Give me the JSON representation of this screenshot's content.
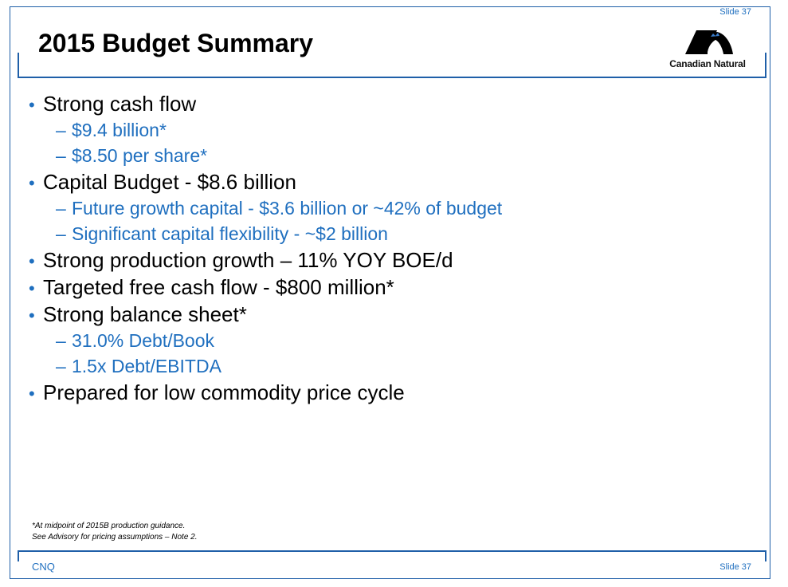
{
  "slide_number_top": "Slide 37",
  "title": "2015 Budget Summary",
  "logo": {
    "text": "Canadian Natural",
    "icon": "canadian-natural-logo-icon"
  },
  "bullets": [
    {
      "text": "Strong cash flow",
      "subs": [
        "$9.4 billion*",
        "$8.50 per share*"
      ]
    },
    {
      "text": "Capital Budget - $8.6 billion",
      "subs": [
        "Future growth capital - $3.6 billion or ~42% of budget",
        "Significant capital flexibility - ~$2 billion"
      ]
    },
    {
      "text": "Strong production growth – 11% YOY BOE/d",
      "subs": []
    },
    {
      "text": "Targeted free cash flow - $800 million*",
      "subs": []
    },
    {
      "text": "Strong balance sheet*",
      "subs": [
        "31.0% Debt/Book",
        "1.5x Debt/EBITDA"
      ]
    },
    {
      "text": "Prepared for low commodity price cycle",
      "subs": []
    }
  ],
  "footnotes": [
    "*At midpoint of 2015B production guidance.",
    "See Advisory for pricing assumptions – Note 2."
  ],
  "footer": {
    "left": "CNQ",
    "right": "Slide 37"
  },
  "colors": {
    "accent": "#1f6fbf",
    "rule": "#1f5fa8"
  }
}
